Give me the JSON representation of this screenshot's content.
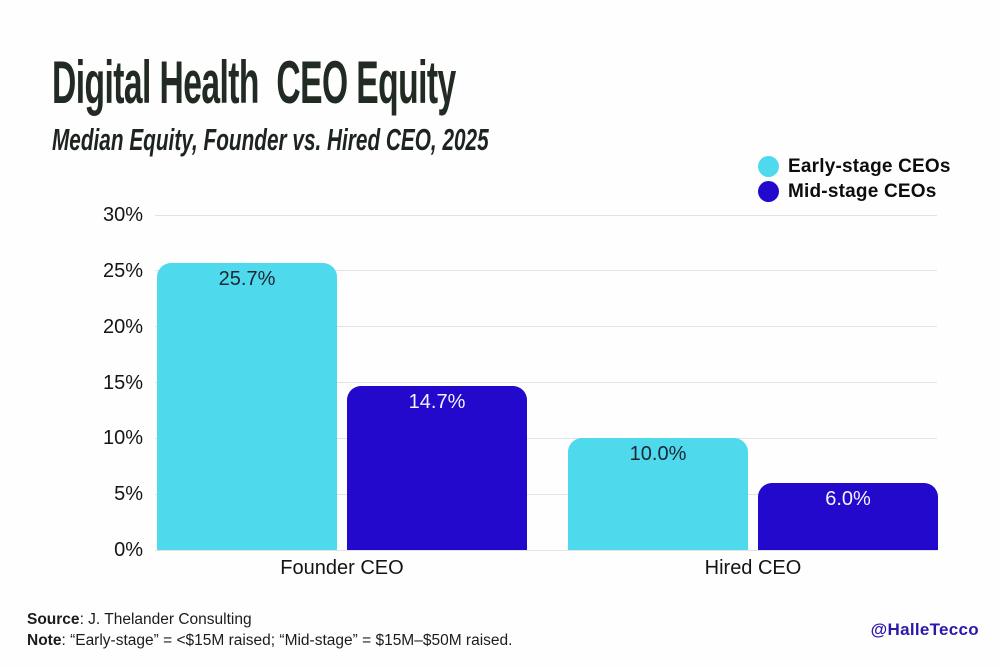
{
  "title": "Digital Health  CEO Equity",
  "subtitle": "Median Equity, Founder vs. Hired CEO, 2025",
  "legend": [
    {
      "label": "Early-stage CEOs",
      "color": "#4ed9ec"
    },
    {
      "label": "Mid-stage CEOs",
      "color": "#2209cc"
    }
  ],
  "chart_data": {
    "type": "bar",
    "title": "Digital Health CEO Equity",
    "subtitle": "Median Equity, Founder vs. Hired CEO, 2025",
    "categories": [
      "Founder CEO",
      "Hired CEO"
    ],
    "series": [
      {
        "name": "Early-stage CEOs",
        "color": "#4ed9ec",
        "label_color": "#1d2733",
        "values": [
          25.7,
          10.0
        ],
        "labels": [
          "25.7%",
          "10.0%"
        ]
      },
      {
        "name": "Mid-stage CEOs",
        "color": "#2209cc",
        "label_color": "#f4f2fa",
        "values": [
          14.7,
          6.0
        ],
        "labels": [
          "14.7%",
          "6.0%"
        ]
      }
    ],
    "xlabel": "",
    "ylabel": "",
    "ylim": [
      0,
      30
    ],
    "yticks": [
      "0%",
      "5%",
      "10%",
      "15%",
      "20%",
      "25%",
      "30%"
    ],
    "grid": true,
    "legend_position": "top-right"
  },
  "footer": {
    "source_label": "Source",
    "source_text": ": J. Thelander Consulting",
    "note_label": "Note",
    "note_text": ": “Early-stage” = <$15M raised; “Mid-stage” = $15M–$50M raised.",
    "credit": "@HalleTecco"
  },
  "colors": {
    "background": "#fefefe",
    "title_text": "#212a23",
    "gridline": "#e2e2e2",
    "credit_text": "#2a18ad"
  }
}
